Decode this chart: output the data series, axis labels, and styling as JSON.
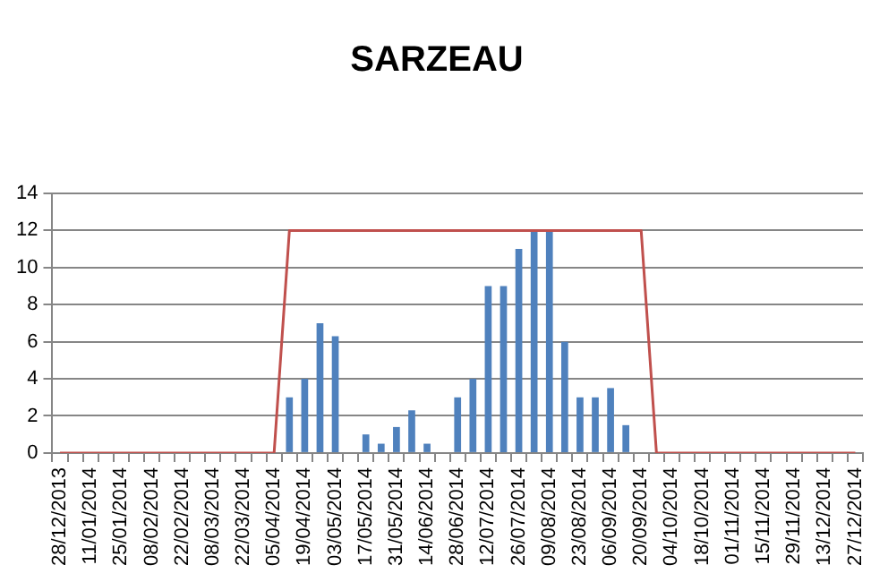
{
  "chart_data": {
    "type": "bar",
    "title": "SARZEAU",
    "categories": [
      "28/12/2013",
      null,
      "11/01/2014",
      null,
      "25/01/2014",
      null,
      "08/02/2014",
      null,
      "22/02/2014",
      null,
      "08/03/2014",
      null,
      "22/03/2014",
      null,
      "05/04/2014",
      null,
      "19/04/2014",
      null,
      "03/05/2014",
      null,
      "17/05/2014",
      null,
      "31/05/2014",
      null,
      "14/06/2014",
      null,
      "28/06/2014",
      null,
      "12/07/2014",
      null,
      "26/07/2014",
      null,
      "09/08/2014",
      null,
      "23/08/2014",
      null,
      "06/09/2014",
      null,
      "20/09/2014",
      null,
      "04/10/2014",
      null,
      "18/10/2014",
      null,
      "01/11/2014",
      null,
      "15/11/2014",
      null,
      "29/11/2014",
      null,
      "13/12/2014",
      null,
      "27/12/2014"
    ],
    "series": [
      {
        "color": "#4f81bd",
        "values": [
          0,
          0,
          0,
          0,
          0,
          0,
          0,
          0,
          0,
          0,
          0,
          0,
          0,
          0,
          0,
          3,
          4,
          7,
          6.3,
          0,
          1,
          0.5,
          1.4,
          2.3,
          0.5,
          0,
          3,
          4,
          9,
          9,
          11,
          12,
          12,
          6,
          3,
          3,
          3.5,
          1.5,
          0,
          0,
          0,
          0,
          0,
          0,
          0,
          0,
          0,
          0,
          0,
          0,
          0,
          0,
          0
        ]
      },
      {
        "type": "line",
        "color": "#c0504d",
        "values": [
          0,
          0,
          0,
          0,
          0,
          0,
          0,
          0,
          0,
          0,
          0,
          0,
          0,
          0,
          0,
          12,
          12,
          12,
          12,
          12,
          12,
          12,
          12,
          12,
          12,
          12,
          12,
          12,
          12,
          12,
          12,
          12,
          12,
          12,
          12,
          12,
          12,
          12,
          12,
          0,
          0,
          0,
          0,
          0,
          0,
          0,
          0,
          0,
          0,
          0,
          0,
          0,
          0
        ]
      }
    ],
    "ylim": [
      0,
      14
    ],
    "yticks": [
      0,
      2,
      4,
      6,
      8,
      10,
      12,
      14
    ],
    "grid": "y",
    "legend": false,
    "marker": "none",
    "line_style": "solid"
  }
}
